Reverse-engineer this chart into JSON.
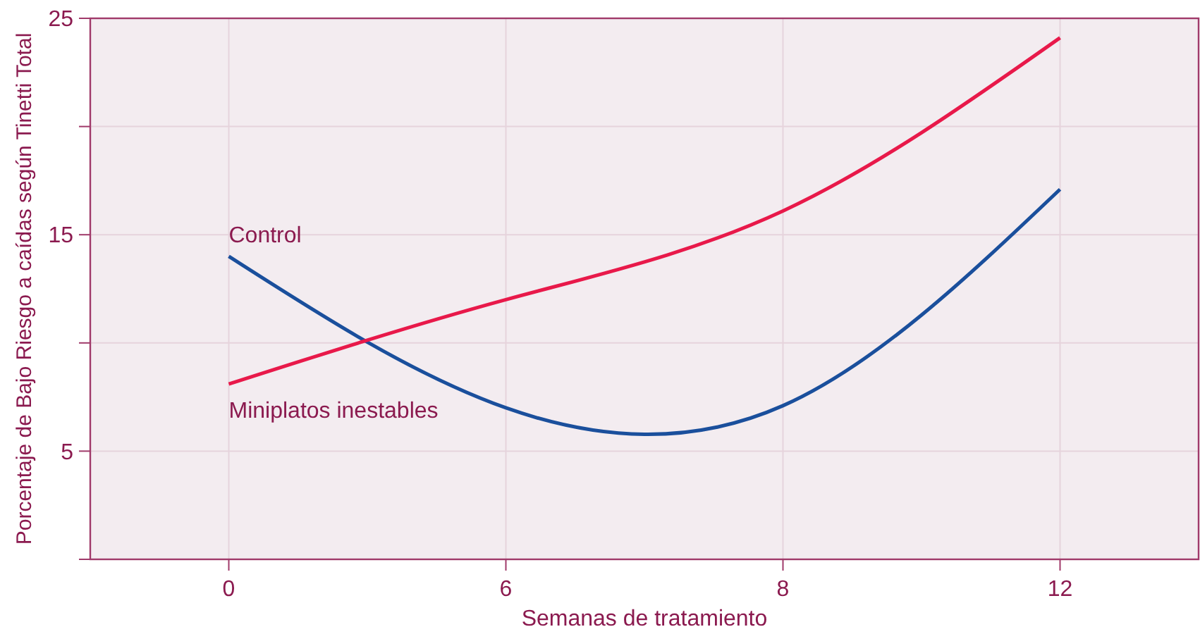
{
  "chart_data": {
    "type": "line",
    "xlabel": "Semanas de tratamiento",
    "ylabel": "Porcentaje de Bajo Riesgo a caídas según Tinetti Total",
    "categories": [
      "0",
      "6",
      "8",
      "12"
    ],
    "series": [
      {
        "name": "Control",
        "color": "#1a4f9c",
        "values": [
          14,
          7,
          7.1,
          17.1
        ]
      },
      {
        "name": "Miniplatos inestables",
        "color": "#e8194a",
        "values": [
          8.1,
          12,
          16.1,
          24.1
        ]
      }
    ],
    "ylim": [
      0,
      25
    ],
    "yticks": [
      {
        "value": 0,
        "label": null
      },
      5,
      {
        "value": 10,
        "label": null
      },
      15,
      {
        "value": 20,
        "label": null
      },
      25
    ],
    "grid": true,
    "marker": "none",
    "line_style": "solid"
  }
}
